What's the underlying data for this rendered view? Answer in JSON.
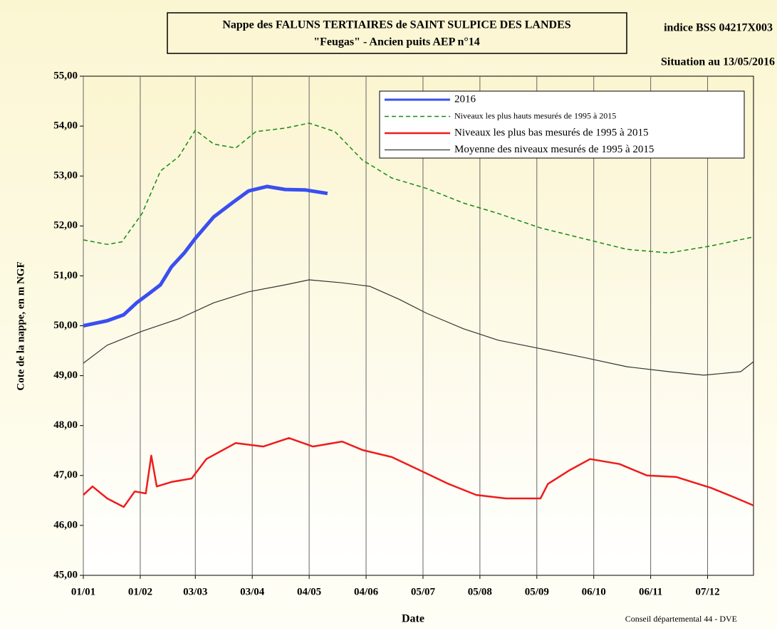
{
  "chart_data": {
    "type": "line",
    "title": "Nappe des FALUNS TERTIAIRES de SAINT SULPICE DES LANDES",
    "subtitle": "\"Feugas\" - Ancien puits AEP n°14",
    "station": "indice BSS 04217X003",
    "situation": "Situation au 13/05/2016",
    "y_label": "Cote de la nappe, en m NGF",
    "x_label": "Date",
    "footer": "Conseil départemental 44  - DVE",
    "xlim": [
      1,
      366
    ],
    "xticks": [
      {
        "value": 1,
        "label": "01/01"
      },
      {
        "value": 32,
        "label": "01/02"
      },
      {
        "value": 62,
        "label": "03/03"
      },
      {
        "value": 93,
        "label": "03/04"
      },
      {
        "value": 124,
        "label": "04/05"
      },
      {
        "value": 155,
        "label": "04/06"
      },
      {
        "value": 186,
        "label": "05/07"
      },
      {
        "value": 217,
        "label": "05/08"
      },
      {
        "value": 248,
        "label": "05/09"
      },
      {
        "value": 279,
        "label": "06/10"
      },
      {
        "value": 310,
        "label": "06/11"
      },
      {
        "value": 341,
        "label": "07/12"
      }
    ],
    "ylim": [
      45,
      55
    ],
    "yticks": [
      {
        "value": 45,
        "label": "45,00"
      },
      {
        "value": 46,
        "label": "46,00"
      },
      {
        "value": 47,
        "label": "47,00"
      },
      {
        "value": 48,
        "label": "48,00"
      },
      {
        "value": 49,
        "label": "49,00"
      },
      {
        "value": 50,
        "label": "50,00"
      },
      {
        "value": 51,
        "label": "51,00"
      },
      {
        "value": 52,
        "label": "52,00"
      },
      {
        "value": 53,
        "label": "53,00"
      },
      {
        "value": 54,
        "label": "54,00"
      },
      {
        "value": 55,
        "label": "55,00"
      }
    ],
    "grid": "vertical",
    "legend": "top-right",
    "series": [
      {
        "name": "2016",
        "color": "#3a4ff0",
        "width": 5,
        "dashed": false,
        "x": [
          1,
          14,
          23,
          30,
          37,
          43,
          49,
          56,
          62,
          72,
          82,
          91,
          101,
          111,
          122,
          134
        ],
        "values": [
          50.0,
          50.1,
          50.22,
          50.46,
          50.65,
          50.82,
          51.18,
          51.46,
          51.75,
          52.18,
          52.46,
          52.7,
          52.79,
          52.73,
          52.72,
          52.65
        ]
      },
      {
        "name": "Niveaux les plus hauts mesurés de 1995 à 2015",
        "color": "#138a13",
        "width": 1.5,
        "dashed": true,
        "x": [
          1,
          14,
          22,
          33,
          43,
          53,
          62,
          72,
          84,
          95,
          111,
          124,
          138,
          153,
          169,
          188,
          208,
          227,
          250,
          273,
          297,
          320,
          343,
          366
        ],
        "values": [
          51.72,
          51.63,
          51.68,
          52.25,
          53.1,
          53.39,
          53.92,
          53.64,
          53.56,
          53.89,
          53.96,
          54.06,
          53.89,
          53.32,
          52.96,
          52.75,
          52.46,
          52.25,
          51.96,
          51.75,
          51.53,
          51.46,
          51.6,
          51.78
        ]
      },
      {
        "name": "Niveaux les plus bas mesurés de 1995 à 2015",
        "color": "#ee1c1c",
        "width": 2.5,
        "dashed": false,
        "x": [
          1,
          6,
          14,
          23,
          29,
          35,
          38,
          41,
          49,
          60,
          68,
          84,
          99,
          113,
          126,
          142,
          153,
          169,
          184,
          200,
          215,
          231,
          250,
          254,
          266,
          277,
          293,
          308,
          324,
          343,
          355,
          366
        ],
        "values": [
          46.61,
          46.78,
          46.54,
          46.37,
          46.68,
          46.64,
          47.4,
          46.78,
          46.87,
          46.94,
          47.33,
          47.65,
          47.58,
          47.75,
          47.58,
          47.68,
          47.51,
          47.37,
          47.11,
          46.83,
          46.61,
          46.54,
          46.54,
          46.83,
          47.11,
          47.33,
          47.23,
          47.0,
          46.97,
          46.75,
          46.57,
          46.4
        ]
      },
      {
        "name": "Moyenne des niveaux mesurés de 1995 à 2015",
        "color": "#333333",
        "width": 1.2,
        "dashed": false,
        "x": [
          1,
          14,
          33,
          53,
          72,
          91,
          111,
          124,
          142,
          157,
          173,
          188,
          208,
          227,
          250,
          273,
          297,
          320,
          339,
          359,
          366
        ],
        "values": [
          49.25,
          49.61,
          49.89,
          50.14,
          50.46,
          50.68,
          50.82,
          50.92,
          50.86,
          50.79,
          50.53,
          50.25,
          49.94,
          49.71,
          49.54,
          49.37,
          49.18,
          49.08,
          49.01,
          49.08,
          49.28
        ]
      }
    ]
  }
}
